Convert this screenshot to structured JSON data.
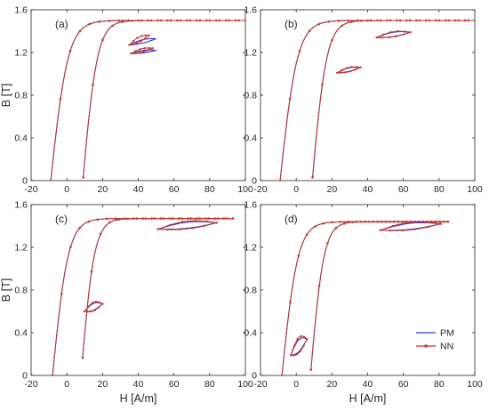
{
  "chart_data": {
    "type": "line",
    "xlabel": "H [A/m]",
    "ylabel": "B [T]",
    "xlim": [
      -20,
      100
    ],
    "ylim": [
      0,
      1.6
    ],
    "xticks": [
      -20,
      0,
      20,
      40,
      60,
      80,
      100
    ],
    "yticks": [
      0,
      0.4,
      0.8,
      1.2,
      1.6
    ],
    "xtick_labels": [
      "-20",
      "0",
      "20",
      "40",
      "60",
      "80",
      "100"
    ],
    "ytick_labels": [
      "0",
      "0.4",
      "0.8",
      "1.2",
      "1.6"
    ],
    "grid": false,
    "legend": {
      "position": "bottom-right of panel (d)",
      "entries": [
        "PM",
        "NN"
      ]
    },
    "colors": {
      "PM": "#3333cc",
      "NN": "#c0392b"
    },
    "panels": [
      {
        "label": "(a)",
        "major_loop": {
          "Hmax": 100,
          "Bmax": 1.5,
          "Hc": 9,
          "Br": 0.93
        },
        "series": [
          {
            "name": "PM",
            "minor_loops": [
              {
                "H": [
                  35,
                  50
                ],
                "B": [
                  1.27,
                  1.33
                ],
                "width": 0.02
              },
              {
                "H": [
                  36,
                  50
                ],
                "B": [
                  1.19,
                  1.22
                ],
                "width": 0.015
              }
            ]
          },
          {
            "name": "NN",
            "minor_loops": [
              {
                "H": [
                  35,
                  46
                ],
                "B": [
                  1.27,
                  1.36
                ],
                "width": 0.03
              },
              {
                "H": [
                  36,
                  48
                ],
                "B": [
                  1.19,
                  1.24
                ],
                "width": 0.02
              }
            ]
          }
        ]
      },
      {
        "label": "(b)",
        "major_loop": {
          "Hmax": 100,
          "Bmax": 1.5,
          "Hc": 9,
          "Br": 0.93
        },
        "series": [
          {
            "name": "PM",
            "minor_loops": [
              {
                "H": [
                  45,
                  64
                ],
                "B": [
                  1.34,
                  1.39
                ],
                "width": 0.025
              },
              {
                "H": [
                  23,
                  36
                ],
                "B": [
                  1.01,
                  1.06
                ],
                "width": 0.02
              }
            ]
          },
          {
            "name": "NN",
            "minor_loops": [
              {
                "H": [
                  45,
                  64
                ],
                "B": [
                  1.34,
                  1.39
                ],
                "width": 0.03
              },
              {
                "H": [
                  23,
                  36
                ],
                "B": [
                  1.01,
                  1.06
                ],
                "width": 0.025
              }
            ]
          }
        ]
      },
      {
        "label": "(c)",
        "major_loop": {
          "Hmax": 93,
          "Bmax": 1.47,
          "Hc": 8,
          "Br": 0.9
        },
        "series": [
          {
            "name": "PM",
            "minor_loops": [
              {
                "H": [
                  51,
                  84
                ],
                "B": [
                  1.37,
                  1.43
                ],
                "width": 0.035
              },
              {
                "H": [
                  10,
                  20
                ],
                "B": [
                  0.6,
                  0.67
                ],
                "width": 0.04
              }
            ]
          },
          {
            "name": "NN",
            "minor_loops": [
              {
                "H": [
                  51,
                  84
                ],
                "B": [
                  1.37,
                  1.43
                ],
                "width": 0.045
              },
              {
                "H": [
                  10,
                  20
                ],
                "B": [
                  0.6,
                  0.67
                ],
                "width": 0.05
              }
            ]
          }
        ]
      },
      {
        "label": "(d)",
        "major_loop": {
          "Hmax": 85,
          "Bmax": 1.44,
          "Hc": 8,
          "Br": 0.88
        },
        "series": [
          {
            "name": "PM",
            "minor_loops": [
              {
                "H": [
                  47,
                  81
                ],
                "B": [
                  1.36,
                  1.42
                ],
                "width": 0.035
              },
              {
                "H": [
                  -3,
                  6
                ],
                "B": [
                  0.19,
                  0.34
                ],
                "width": 0.07
              }
            ]
          },
          {
            "name": "NN",
            "minor_loops": [
              {
                "H": [
                  47,
                  81
                ],
                "B": [
                  1.36,
                  1.42
                ],
                "width": 0.045
              },
              {
                "H": [
                  -3,
                  6
                ],
                "B": [
                  0.19,
                  0.34
                ],
                "width": 0.09
              }
            ]
          }
        ]
      }
    ]
  }
}
